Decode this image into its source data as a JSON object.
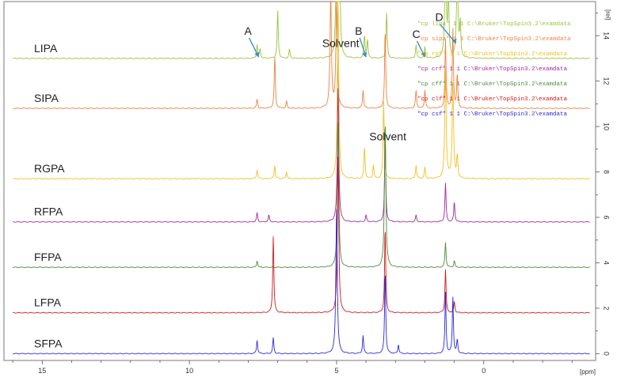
{
  "chart_data": {
    "type": "line",
    "title": "",
    "xlabel": "[ppm]",
    "ylabel": "[rel]",
    "x_range": [
      16.3,
      -3.8
    ],
    "x_reversed": true,
    "y_range": [
      -0.3,
      15.5
    ],
    "x_ticks": [
      15,
      10,
      5,
      0
    ],
    "x_tick_labels": [
      "15",
      "10",
      "5",
      "0"
    ],
    "y_ticks": [
      0,
      2,
      4,
      6,
      8,
      10,
      12,
      14
    ],
    "y_tick_labels": [
      "0",
      "2",
      "4",
      "6",
      "8",
      "10",
      "12",
      "14"
    ],
    "grid": false,
    "series": [
      {
        "name": "LIPA",
        "color": "#9bc23c",
        "offset": 13.0,
        "peaks": [
          [
            7.7,
            0.6
          ],
          [
            7.6,
            0.4
          ],
          [
            7.0,
            2.1
          ],
          [
            6.6,
            0.4
          ],
          [
            5.0,
            6.0
          ],
          [
            4.9,
            4.5
          ],
          [
            4.05,
            1.0
          ],
          [
            3.95,
            0.8
          ],
          [
            3.3,
            2.0
          ],
          [
            2.3,
            0.6
          ],
          [
            2.0,
            0.5
          ],
          [
            1.3,
            5.0
          ],
          [
            1.2,
            3.0
          ],
          [
            0.9,
            4.5
          ],
          [
            0.8,
            1.5
          ]
        ]
      },
      {
        "name": "SIPA",
        "color": "#f08040",
        "offset": 10.8,
        "peaks": [
          [
            7.7,
            0.4
          ],
          [
            7.1,
            2.3
          ],
          [
            6.7,
            0.3
          ],
          [
            5.2,
            5.0
          ],
          [
            5.0,
            4.8
          ],
          [
            4.1,
            0.8
          ],
          [
            3.35,
            3.5
          ],
          [
            2.3,
            0.8
          ],
          [
            2.0,
            0.8
          ],
          [
            1.3,
            3.0
          ],
          [
            1.05,
            3.5
          ],
          [
            0.9,
            1.5
          ]
        ]
      },
      {
        "name": "RGPA",
        "color": "#f0c020",
        "offset": 7.7,
        "peaks": [
          [
            7.7,
            0.4
          ],
          [
            7.1,
            0.6
          ],
          [
            6.7,
            0.3
          ],
          [
            4.95,
            8.0
          ],
          [
            4.05,
            1.4
          ],
          [
            3.75,
            0.6
          ],
          [
            3.4,
            3.4
          ],
          [
            2.3,
            0.6
          ],
          [
            2.0,
            0.5
          ],
          [
            1.3,
            4.8
          ],
          [
            1.05,
            4.2
          ],
          [
            0.9,
            1.0
          ]
        ]
      },
      {
        "name": "RFPA",
        "color": "#a0289a",
        "offset": 5.8,
        "peaks": [
          [
            7.7,
            0.4
          ],
          [
            7.3,
            0.3
          ],
          [
            4.95,
            6.0
          ],
          [
            4.0,
            0.3
          ],
          [
            3.35,
            3.9
          ],
          [
            2.3,
            0.3
          ],
          [
            1.3,
            1.7
          ],
          [
            1.0,
            0.9
          ]
        ]
      },
      {
        "name": "FFPA",
        "color": "#4c8a3c",
        "offset": 3.8,
        "peaks": [
          [
            7.7,
            0.3
          ],
          [
            4.95,
            6.5
          ],
          [
            3.35,
            6.5
          ],
          [
            1.3,
            1.1
          ],
          [
            1.0,
            0.3
          ]
        ]
      },
      {
        "name": "LFPA",
        "color": "#d01818",
        "offset": 1.8,
        "peaks": [
          [
            7.15,
            3.4
          ],
          [
            4.95,
            7.0
          ],
          [
            3.35,
            3.8
          ],
          [
            1.3,
            1.9
          ],
          [
            1.0,
            0.5
          ]
        ]
      },
      {
        "name": "SFPA",
        "color": "#2a2ad8",
        "offset": 0.0,
        "peaks": [
          [
            7.7,
            0.6
          ],
          [
            7.15,
            0.7
          ],
          [
            5.0,
            6.5
          ],
          [
            4.1,
            0.8
          ],
          [
            3.35,
            3.7
          ],
          [
            2.9,
            0.4
          ],
          [
            1.3,
            2.7
          ],
          [
            1.05,
            2.5
          ],
          [
            0.9,
            0.6
          ]
        ]
      }
    ],
    "annotations": [
      {
        "text": "A",
        "x": 7.65,
        "y": 13.0
      },
      {
        "text": "B",
        "x": 4.0,
        "y": 13.0
      },
      {
        "text": "C",
        "x": 2.0,
        "y": 13.0
      },
      {
        "text": "D",
        "x": 0.95,
        "y": 13.6
      },
      {
        "text": "Solvent",
        "x": 4.95,
        "y": 13.5
      },
      {
        "text": "Solvent",
        "x": 3.35,
        "y": 9.4
      }
    ],
    "legend": [
      {
        "text": "\"cp lipa\"  1  1  C:\\Bruker\\TopSpin3.2\\examdata",
        "color": "#9bc23c"
      },
      {
        "text": "\"cp sipa\"  1  1  C:\\Bruker\\TopSpin3.2\\examdata",
        "color": "#f08040"
      },
      {
        "text": "\"cp rgf\"  1  1  C:\\Bruker\\TopSpin3.2\\examdata",
        "color": "#f0c020"
      },
      {
        "text": "\"cp crf\"  1  1  C:\\Bruker\\TopSpin3.2\\examdata",
        "color": "#a0289a"
      },
      {
        "text": "\"cp cff\"  1  1  C:\\Bruker\\TopSpin3.2\\examdata",
        "color": "#4c8a3c"
      },
      {
        "text": "\"cp clf\"  1  1  C:\\Bruker\\TopSpin3.2\\examdata",
        "color": "#d01818"
      },
      {
        "text": "\"cp csf\"  1  1  C:\\Bruker\\TopSpin3.2\\examdata",
        "color": "#2a2ad8"
      }
    ],
    "legend_placement": "top-right"
  }
}
